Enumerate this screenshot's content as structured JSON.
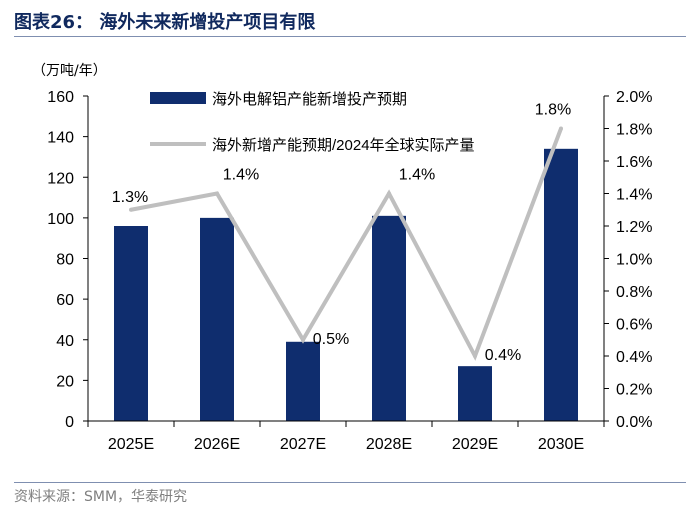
{
  "header": {
    "title": "图表26：   海外未来新增投产项目有限"
  },
  "footer": {
    "source": "资料来源：SMM，华泰研究"
  },
  "colors": {
    "bar": "#0f2d6e",
    "line": "#bfbfbf",
    "title": "#10295e",
    "rule": "#7f8fb0"
  },
  "chart_data": {
    "type": "bar",
    "categories": [
      "2025E",
      "2026E",
      "2027E",
      "2028E",
      "2029E",
      "2030E"
    ],
    "series": [
      {
        "name": "海外电解铝产能新增投产预期",
        "type": "bar",
        "axis": "left",
        "values": [
          96,
          100,
          39,
          101,
          27,
          134
        ]
      },
      {
        "name": "海外新增产能预期/2024年全球实际产量",
        "type": "line",
        "axis": "right",
        "values": [
          1.3,
          1.4,
          0.5,
          1.4,
          0.4,
          1.8
        ],
        "labels": [
          "1.3%",
          "1.4%",
          "0.5%",
          "1.4%",
          "0.4%",
          "1.8%"
        ]
      }
    ],
    "ylabel": "（万吨/年）",
    "ylim": [
      0,
      160
    ],
    "yticks": [
      "0",
      "20",
      "40",
      "60",
      "80",
      "100",
      "120",
      "140",
      "160"
    ],
    "y2lim": [
      0,
      2.0
    ],
    "y2ticks": [
      "0.0%",
      "0.2%",
      "0.4%",
      "0.6%",
      "0.8%",
      "1.0%",
      "1.2%",
      "1.4%",
      "1.6%",
      "1.8%",
      "2.0%"
    ],
    "legend_position": "top",
    "grid": false
  }
}
